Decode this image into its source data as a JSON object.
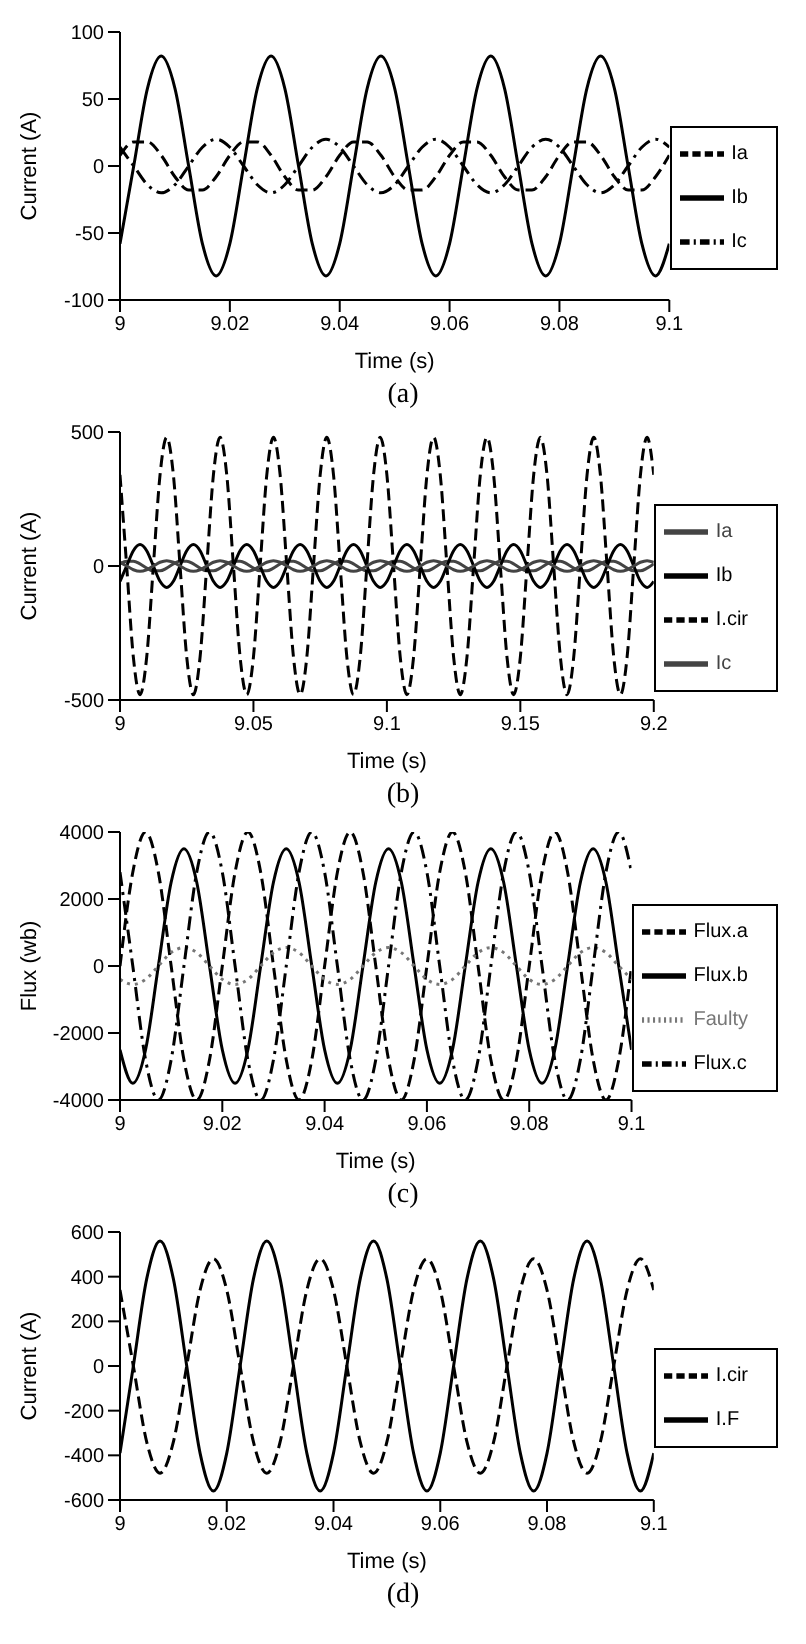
{
  "chart_data": [
    {
      "type": "line",
      "title": "(a)",
      "xlabel": "Time (s)",
      "ylabel": "Current (A)",
      "legend": "right",
      "xlim": [
        9,
        9.1
      ],
      "xticks": [
        9,
        9.02,
        9.04,
        9.06,
        9.08,
        9.1
      ],
      "ylim": [
        -100,
        100
      ],
      "yticks": [
        -100,
        -50,
        0,
        50,
        100
      ],
      "x": [
        9,
        9.0025,
        9.005,
        9.0075,
        9.01,
        9.0125,
        9.015,
        9.0175,
        9.02,
        9.0225,
        9.025,
        9.0275,
        9.03,
        9.0325,
        9.035,
        9.0375,
        9.04,
        9.0425,
        9.045,
        9.0475,
        9.05,
        9.0525,
        9.055,
        9.0575,
        9.06,
        9.0625,
        9.065,
        9.0675,
        9.07,
        9.0725,
        9.075,
        9.0775,
        9.08,
        9.0825,
        9.085,
        9.0875,
        9.09,
        9.0925,
        9.095,
        9.0975,
        9.1
      ],
      "series": [
        {
          "name": "Ia",
          "color": "#000000",
          "line_style": "dashed",
          "values": [
            8,
            18,
            18,
            8,
            -8,
            -18,
            -18,
            -8,
            8,
            18,
            18,
            8,
            -8,
            -18,
            -18,
            -8,
            8,
            18,
            18,
            8,
            -8,
            -18,
            -18,
            -8,
            8,
            18,
            18,
            8,
            -8,
            -18,
            -18,
            -8,
            8,
            18,
            18,
            8,
            -8,
            -18,
            -18,
            -8,
            8
          ]
        },
        {
          "name": "Ib",
          "color": "#000000",
          "line_style": "solid",
          "values": [
            -58,
            0,
            58,
            82,
            58,
            0,
            -58,
            -82,
            -58,
            0,
            58,
            82,
            58,
            0,
            -58,
            -82,
            -58,
            0,
            58,
            82,
            58,
            0,
            -58,
            -82,
            -58,
            0,
            58,
            82,
            58,
            0,
            -58,
            -82,
            -58,
            0,
            58,
            82,
            58,
            0,
            -58,
            -82,
            -58
          ]
        },
        {
          "name": "Ic",
          "color": "#000000",
          "line_style": "dashdot",
          "values": [
            14,
            0,
            -14,
            -20,
            -14,
            0,
            14,
            20,
            14,
            0,
            -14,
            -20,
            -14,
            0,
            14,
            20,
            14,
            0,
            -14,
            -20,
            -14,
            0,
            14,
            20,
            14,
            0,
            -14,
            -20,
            -14,
            0,
            14,
            20,
            14,
            0,
            -14,
            -20,
            -14,
            0,
            14,
            20,
            14
          ]
        }
      ]
    },
    {
      "type": "line",
      "title": "(b)",
      "xlabel": "Time (s)",
      "ylabel": "Current (A)",
      "legend": "right",
      "xlim": [
        9,
        9.2
      ],
      "xticks": [
        9,
        9.05,
        9.1,
        9.15,
        9.2
      ],
      "ylim": [
        -500,
        500
      ],
      "yticks": [
        -500,
        0,
        500
      ],
      "x": [
        9,
        9.0025,
        9.005,
        9.0075,
        9.01,
        9.0125,
        9.015,
        9.0175,
        9.02,
        9.0225,
        9.025,
        9.0275,
        9.03,
        9.0325,
        9.035,
        9.0375,
        9.04,
        9.0425,
        9.045,
        9.0475,
        9.05,
        9.0525,
        9.055,
        9.0575,
        9.06,
        9.0625,
        9.065,
        9.0675,
        9.07,
        9.0725,
        9.075,
        9.0775,
        9.08,
        9.0825,
        9.085,
        9.0875,
        9.09,
        9.0925,
        9.095,
        9.0975,
        9.1,
        9.1025,
        9.105,
        9.1075,
        9.11,
        9.1125,
        9.115,
        9.1175,
        9.12,
        9.1225,
        9.125,
        9.1275,
        9.13,
        9.1325,
        9.135,
        9.1375,
        9.14,
        9.1425,
        9.145,
        9.1475,
        9.15,
        9.1525,
        9.155,
        9.1575,
        9.16,
        9.1625,
        9.165,
        9.1675,
        9.17,
        9.1725,
        9.175,
        9.1775,
        9.18,
        9.1825,
        9.185,
        9.1875,
        9.19,
        9.1925,
        9.195,
        9.1975,
        9.2
      ],
      "series": [
        {
          "name": "Ia",
          "color": "#444444",
          "line_style": "solid",
          "values": [
            8,
            18,
            18,
            8,
            -8,
            -18,
            -18,
            -8,
            8,
            18,
            18,
            8,
            -8,
            -18,
            -18,
            -8,
            8,
            18,
            18,
            8,
            -8,
            -18,
            -18,
            -8,
            8,
            18,
            18,
            8,
            -8,
            -18,
            -18,
            -8,
            8,
            18,
            18,
            8,
            -8,
            -18,
            -18,
            -8,
            8,
            18,
            18,
            8,
            -8,
            -18,
            -18,
            -8,
            8,
            18,
            18,
            8,
            -8,
            -18,
            -18,
            -8,
            8,
            18,
            18,
            8,
            -8,
            -18,
            -18,
            -8,
            8,
            18,
            18,
            8,
            -8,
            -18,
            -18,
            -8,
            8,
            18,
            18,
            8,
            -8,
            -18,
            -18,
            -8,
            8
          ]
        },
        {
          "name": "Ib",
          "color": "#000000",
          "line_style": "solid",
          "values": [
            -57,
            0,
            57,
            80,
            57,
            0,
            -57,
            -80,
            -57,
            0,
            57,
            80,
            57,
            0,
            -57,
            -80,
            -57,
            0,
            57,
            80,
            57,
            0,
            -57,
            -80,
            -57,
            0,
            57,
            80,
            57,
            0,
            -57,
            -80,
            -57,
            0,
            57,
            80,
            57,
            0,
            -57,
            -80,
            -57,
            0,
            57,
            80,
            57,
            0,
            -57,
            -80,
            -57,
            0,
            57,
            80,
            57,
            0,
            -57,
            -80,
            -57,
            0,
            57,
            80,
            57,
            0,
            -57,
            -80,
            -57,
            0,
            57,
            80,
            57,
            0,
            -57,
            -80,
            -57,
            0,
            57,
            80,
            57,
            0,
            -57,
            -80,
            -57
          ]
        },
        {
          "name": "I.cir",
          "color": "#000000",
          "line_style": "dashed",
          "values": [
            340,
            0,
            -340,
            -480,
            -340,
            0,
            340,
            480,
            340,
            0,
            -340,
            -480,
            -340,
            0,
            340,
            480,
            340,
            0,
            -340,
            -480,
            -340,
            0,
            340,
            480,
            340,
            0,
            -340,
            -480,
            -340,
            0,
            340,
            480,
            340,
            0,
            -340,
            -480,
            -340,
            0,
            340,
            480,
            340,
            0,
            -340,
            -480,
            -340,
            0,
            340,
            480,
            340,
            0,
            -340,
            -480,
            -340,
            0,
            340,
            480,
            340,
            0,
            -340,
            -480,
            -340,
            0,
            340,
            480,
            340,
            0,
            -340,
            -480,
            -340,
            0,
            340,
            480,
            340,
            0,
            -340,
            -480,
            -340,
            0,
            340,
            480,
            340
          ]
        },
        {
          "name": "Ic",
          "color": "#444444",
          "line_style": "solid",
          "values": [
            14,
            0,
            -14,
            -20,
            -14,
            0,
            14,
            20,
            14,
            0,
            -14,
            -20,
            -14,
            0,
            14,
            20,
            14,
            0,
            -14,
            -20,
            -14,
            0,
            14,
            20,
            14,
            0,
            -14,
            -20,
            -14,
            0,
            14,
            20,
            14,
            0,
            -14,
            -20,
            -14,
            0,
            14,
            20,
            14,
            0,
            -14,
            -20,
            -14,
            0,
            14,
            20,
            14,
            0,
            -14,
            -20,
            -14,
            0,
            14,
            20,
            14,
            0,
            -14,
            -20,
            -14,
            0,
            14,
            20,
            14,
            0,
            -14,
            -20,
            -14,
            0,
            14,
            20,
            14,
            0,
            -14,
            -20,
            -14,
            0,
            14,
            20,
            14
          ]
        }
      ]
    },
    {
      "type": "line",
      "title": "(c)",
      "xlabel": "Time (s)",
      "ylabel": "Flux (wb)",
      "legend": "right",
      "xlim": [
        9,
        9.1
      ],
      "xticks": [
        9,
        9.02,
        9.04,
        9.06,
        9.08,
        9.1
      ],
      "ylim": [
        -4000,
        4000
      ],
      "yticks": [
        -4000,
        -2000,
        0,
        2000,
        4000
      ],
      "x": [
        9,
        9.0025,
        9.005,
        9.0075,
        9.01,
        9.0125,
        9.015,
        9.0175,
        9.02,
        9.0225,
        9.025,
        9.0275,
        9.03,
        9.0325,
        9.035,
        9.0375,
        9.04,
        9.0425,
        9.045,
        9.0475,
        9.05,
        9.0525,
        9.055,
        9.0575,
        9.06,
        9.0625,
        9.065,
        9.0675,
        9.07,
        9.0725,
        9.075,
        9.0775,
        9.08,
        9.0825,
        9.085,
        9.0875,
        9.09,
        9.0925,
        9.095,
        9.0975,
        9.1
      ],
      "series": [
        {
          "name": "Flux.a",
          "color": "#000000",
          "line_style": "dashed",
          "values": [
            0,
            2800,
            4000,
            2800,
            0,
            -2800,
            -4000,
            -2800,
            0,
            2800,
            4000,
            2800,
            0,
            -2800,
            -4000,
            -2800,
            0,
            2800,
            4000,
            2800,
            0,
            -2800,
            -4000,
            -2800,
            0,
            2800,
            4000,
            2800,
            0,
            -2800,
            -4000,
            -2800,
            0,
            2800,
            4000,
            2800,
            0,
            -2800,
            -4000,
            -2800,
            0
          ]
        },
        {
          "name": "Flux.b",
          "color": "#000000",
          "line_style": "solid",
          "values": [
            -2500,
            -3500,
            -2500,
            0,
            2500,
            3500,
            2500,
            0,
            -2500,
            -3500,
            -2500,
            0,
            2500,
            3500,
            2500,
            0,
            -2500,
            -3500,
            -2500,
            0,
            2500,
            3500,
            2500,
            0,
            -2500,
            -3500,
            -2500,
            0,
            2500,
            3500,
            2500,
            0,
            -2500,
            -3500,
            -2500,
            0,
            2500,
            3500,
            2500,
            0,
            -2500
          ]
        },
        {
          "name": "Faulty",
          "color": "#777777",
          "line_style": "dotted",
          "values": [
            -400,
            -550,
            -400,
            0,
            400,
            550,
            400,
            0,
            -400,
            -550,
            -400,
            0,
            400,
            550,
            400,
            0,
            -400,
            -550,
            -400,
            0,
            400,
            550,
            400,
            0,
            -400,
            -550,
            -400,
            0,
            400,
            550,
            400,
            0,
            -400,
            -550,
            -400,
            0,
            400,
            550,
            400,
            0,
            -400
          ]
        },
        {
          "name": "Flux.c",
          "color": "#000000",
          "line_style": "dashdot",
          "values": [
            2800,
            0,
            -2800,
            -4000,
            -2800,
            0,
            2800,
            4000,
            2800,
            0,
            -2800,
            -4000,
            -2800,
            0,
            2800,
            4000,
            2800,
            0,
            -2800,
            -4000,
            -2800,
            0,
            2800,
            4000,
            2800,
            0,
            -2800,
            -4000,
            -2800,
            0,
            2800,
            4000,
            2800,
            0,
            -2800,
            -4000,
            -2800,
            0,
            2800,
            4000,
            2800
          ]
        }
      ]
    },
    {
      "type": "line",
      "title": "(d)",
      "xlabel": "Time (s)",
      "ylabel": "Current (A)",
      "legend": "right",
      "xlim": [
        9,
        9.1
      ],
      "xticks": [
        9,
        9.02,
        9.04,
        9.06,
        9.08,
        9.1
      ],
      "ylim": [
        -600,
        600
      ],
      "yticks": [
        -600,
        -400,
        -200,
        0,
        200,
        400,
        600
      ],
      "x": [
        9,
        9.0025,
        9.005,
        9.0075,
        9.01,
        9.0125,
        9.015,
        9.0175,
        9.02,
        9.0225,
        9.025,
        9.0275,
        9.03,
        9.0325,
        9.035,
        9.0375,
        9.04,
        9.0425,
        9.045,
        9.0475,
        9.05,
        9.0525,
        9.055,
        9.0575,
        9.06,
        9.0625,
        9.065,
        9.0675,
        9.07,
        9.0725,
        9.075,
        9.0775,
        9.08,
        9.0825,
        9.085,
        9.0875,
        9.09,
        9.0925,
        9.095,
        9.0975,
        9.1
      ],
      "series": [
        {
          "name": "I.cir",
          "color": "#000000",
          "line_style": "dashed",
          "values": [
            340,
            0,
            -340,
            -480,
            -340,
            0,
            340,
            480,
            340,
            0,
            -340,
            -480,
            -340,
            0,
            340,
            480,
            340,
            0,
            -340,
            -480,
            -340,
            0,
            340,
            480,
            340,
            0,
            -340,
            -480,
            -340,
            0,
            340,
            480,
            340,
            0,
            -340,
            -480,
            -340,
            0,
            340,
            480,
            340
          ]
        },
        {
          "name": "I.F",
          "color": "#000000",
          "line_style": "solid",
          "values": [
            -390,
            0,
            390,
            560,
            390,
            0,
            -390,
            -560,
            -390,
            0,
            390,
            560,
            390,
            0,
            -390,
            -560,
            -390,
            0,
            390,
            560,
            390,
            0,
            -390,
            -560,
            -390,
            0,
            390,
            560,
            390,
            0,
            -390,
            -560,
            -390,
            0,
            390,
            560,
            390,
            0,
            -390,
            -560,
            -390
          ]
        }
      ]
    }
  ]
}
